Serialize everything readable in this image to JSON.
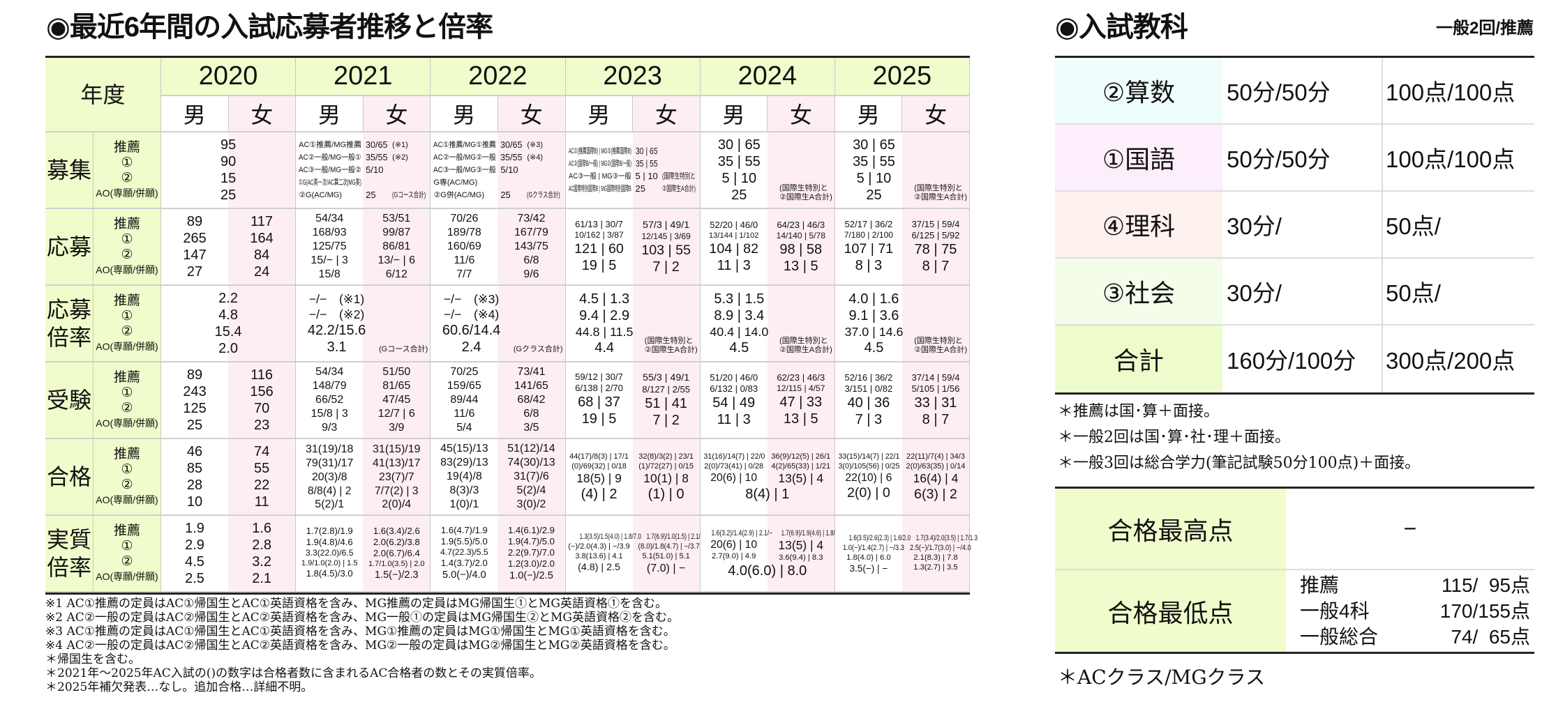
{
  "left_title": "◉最近6年間の入試応募者推移と倍率",
  "table": {
    "year_header": "年度",
    "years": [
      "2020",
      "2021",
      "2022",
      "2023",
      "2024",
      "2025"
    ],
    "gender": [
      "男",
      "女"
    ],
    "colors": {
      "label_bg": "#f0fccb",
      "female_bg": "#fdeef5"
    },
    "rows": [
      {
        "label": "募集",
        "sublabels": [
          "推薦",
          "①",
          "②",
          "AO(専願/併願)"
        ],
        "cells": [
          {
            "shared": [
              "95",
              "90",
              "15",
              "25"
            ]
          },
          {
            "table": [
              [
                "AC①推薦/MG推薦",
                "30/65",
                "(※1)"
              ],
              [
                "AC②一般/MG一般①",
                "35/55",
                "(※2)"
              ],
              [
                "AC③一般/MG一般②",
                "5/10",
                ""
              ],
              [
                "①G(AC英一次/AC算二次|MG英)",
                "",
                ""
              ],
              [
                "②G(AC/MG)",
                "25",
                "(Gコース合計)"
              ]
            ]
          },
          {
            "table": [
              [
                "AC①推薦/MG①推薦",
                "30/65",
                "(※3)"
              ],
              [
                "AC②一般/MG②一般",
                "35/55",
                "(※4)"
              ],
              [
                "AC③一般/MG③一般",
                "5/10",
                ""
              ],
              [
                "G専(AC/MG)",
                "",
                ""
              ],
              [
                "②G併(AC/MG)",
                "25",
                "(Gクラス合計)"
              ]
            ]
          },
          {
            "table": [
              [
                "AC①(推薦国際B) | MG①(推薦国際B)",
                "30 | 65",
                ""
              ],
              [
                "AC②(国際B/一般) | MG②(国際B/一般)",
                "35 | 55",
                ""
              ],
              [
                "AC③一般 | MG③一般",
                "5 | 10",
                "(国際生特別と"
              ],
              [
                "AC国際特別国際B | MG国際特別国際B",
                "25",
                "②国際生A合計)"
              ]
            ]
          },
          {
            "shared": [
              "30 | 65",
              "35 | 55",
              "5 | 10",
              "25"
            ],
            "note": "(国際生特別と\n②国際生A合計)"
          },
          {
            "shared": [
              "30 | 65",
              "35 | 55",
              "5 | 10",
              "25"
            ],
            "note": "(国際生特別と\n②国際生A合計)"
          }
        ]
      },
      {
        "label": "応募",
        "sublabels": [
          "推薦",
          "①",
          "②",
          "AO(専願/併願)"
        ],
        "cells": [
          {
            "m": [
              "89",
              "265",
              "147",
              "27"
            ],
            "f": [
              "117",
              "164",
              "84",
              "24"
            ]
          },
          {
            "m": [
              "54/34",
              "168/93",
              "125/75",
              "15/− | 3",
              "15/8"
            ],
            "f": [
              "53/51",
              "99/87",
              "86/81",
              "13/− | 6",
              "6/12"
            ]
          },
          {
            "m": [
              "70/26",
              "189/78",
              "160/69",
              "11/6",
              "7/7"
            ],
            "f": [
              "73/42",
              "167/79",
              "143/75",
              "6/8",
              "9/6"
            ]
          },
          {
            "m": [
              "61/13 | 30/7",
              "10/162 | 3/87",
              "121 | 60",
              "19 | 5"
            ],
            "f": [
              "57/3 | 49/1",
              "12/145 | 3/69",
              "103 | 55",
              "7 | 2"
            ]
          },
          {
            "m": [
              "52/20 | 46/0",
              "13/144 | 1/102",
              "104 | 82",
              "11 | 3"
            ],
            "f": [
              "64/23 | 46/3",
              "14/140 | 5/78",
              "98 | 58",
              "13 | 5"
            ]
          },
          {
            "m": [
              "52/17 | 36/2",
              "7/180 | 2/100",
              "107 | 71",
              "8 | 3"
            ],
            "f": [
              "37/15 | 59/4",
              "6/125 | 5/92",
              "78 | 75",
              "8 | 7"
            ]
          }
        ]
      },
      {
        "label": "応募倍率",
        "sublabels": [
          "推薦",
          "①",
          "②",
          "AO(専願/併願)"
        ],
        "cells": [
          {
            "shared": [
              "2.2",
              "4.8",
              "15.4",
              "2.0"
            ]
          },
          {
            "shared": [
              "−/−　(※1)",
              "−/−　(※2)",
              "42.2/15.6",
              "3.1"
            ],
            "note": "(Gコース合計)"
          },
          {
            "shared": [
              "−/−　(※3)",
              "−/−　(※4)",
              "60.6/14.4",
              "2.4"
            ],
            "note": "(Gクラス合計)"
          },
          {
            "shared": [
              "4.5 | 1.3",
              "9.4 | 2.9",
              "44.8 | 11.5",
              "4.4"
            ],
            "note": "(国際生特別と\n②国際生A合計)"
          },
          {
            "shared": [
              "5.3 | 1.5",
              "8.9 | 3.4",
              "40.4 | 14.0",
              "4.5"
            ],
            "note": "(国際生特別と\n②国際生A合計)"
          },
          {
            "shared": [
              "4.0 | 1.6",
              "9.1 | 3.6",
              "37.0 | 14.6",
              "4.5"
            ],
            "note": "(国際生特別と\n②国際生A合計)"
          }
        ]
      },
      {
        "label": "受験",
        "sublabels": [
          "推薦",
          "①",
          "②",
          "AO(専願/併願)"
        ],
        "cells": [
          {
            "m": [
              "89",
              "243",
              "125",
              "25"
            ],
            "f": [
              "116",
              "156",
              "70",
              "23"
            ]
          },
          {
            "m": [
              "54/34",
              "148/79",
              "66/52",
              "15/8 | 3",
              "9/3"
            ],
            "f": [
              "51/50",
              "81/65",
              "47/45",
              "12/7 | 6",
              "3/9"
            ]
          },
          {
            "m": [
              "70/25",
              "159/65",
              "89/44",
              "11/6",
              "5/4"
            ],
            "f": [
              "73/41",
              "141/65",
              "68/42",
              "6/8",
              "3/5"
            ]
          },
          {
            "m": [
              "59/12 | 30/7",
              "6/138 | 2/70",
              "68 | 37",
              "19 | 5"
            ],
            "f": [
              "55/3 | 49/1",
              "8/127 | 2/55",
              "51 | 41",
              "7 | 2"
            ]
          },
          {
            "m": [
              "51/20 | 46/0",
              "6/132 | 0/83",
              "54 | 49",
              "11 | 3"
            ],
            "f": [
              "62/23 | 46/3",
              "12/115 | 4/57",
              "47 | 33",
              "13 | 5"
            ]
          },
          {
            "m": [
              "52/16 | 36/2",
              "3/151 | 0/82",
              "40 | 36",
              "7 | 3"
            ],
            "f": [
              "37/14 | 59/4",
              "5/105 | 1/56",
              "33 | 31",
              "8 | 7"
            ]
          }
        ]
      },
      {
        "label": "合格",
        "sublabels": [
          "推薦",
          "①",
          "②",
          "AO(専願/併願)"
        ],
        "cells": [
          {
            "m": [
              "46",
              "85",
              "28",
              "10"
            ],
            "f": [
              "74",
              "55",
              "22",
              "11"
            ]
          },
          {
            "m": [
              "31(19)/18",
              "79(31)/17",
              "20(3)/8",
              "8/8(4) | 2",
              "5(2)/1"
            ],
            "f": [
              "31(15)/19",
              "41(13)/17",
              "23(7)/7",
              "7/7(2) | 3",
              "2(0)/4"
            ]
          },
          {
            "m": [
              "45(15)/13",
              "83(29)/13",
              "19(4)/8",
              "8(3)/3",
              "1(0)/1"
            ],
            "f": [
              "51(12)/14",
              "74(30)/13",
              "31(7)/6",
              "5(2)/4",
              "3(0)/2"
            ]
          },
          {
            "m": [
              "44(17)/8(3) | 17/1",
              "(0)/69(32) | 0/18",
              "18(5) | 9",
              "(4) | 2"
            ],
            "f": [
              "32(8)/3(2) | 23/1",
              "(1)/72(27) | 0/15",
              "10(1) | 8",
              "(1) | 0"
            ]
          },
          {
            "m": [
              "31(16)/14(7) | 22/0",
              "2(0)/73(41) | 0/28",
              "20(6) | 10"
            ],
            "f": [
              "36(9)/12(5) | 26/1",
              "4(2)/65(33) | 1/21",
              "13(5) | 4"
            ],
            "shared": [
              "8(4) | 1"
            ]
          },
          {
            "m": [
              "33(15)/14(7) | 22/1",
              "3(0)/105(56) | 0/25",
              "22(10) | 6",
              "2(0) | 0"
            ],
            "f": [
              "22(11)/7(4) | 34/3",
              "2(0)/63(35) | 0/14",
              "16(4) | 4",
              "6(3) | 2"
            ]
          }
        ]
      },
      {
        "label": "実質倍率",
        "sublabels": [
          "推薦",
          "①",
          "②",
          "AO(専願/併願)"
        ],
        "cells": [
          {
            "m": [
              "1.9",
              "2.9",
              "4.5",
              "2.5"
            ],
            "f": [
              "1.6",
              "2.8",
              "3.2",
              "2.1"
            ]
          },
          {
            "m": [
              "1.7(2.8)/1.9",
              "1.9(4.8)/4.6",
              "3.3(22.0)/6.5",
              "1.9/1.0(2.0) | 1.5",
              "1.8(4.5)/3.0"
            ],
            "f": [
              "1.6(3.4)/2.6",
              "2.0(6.2)/3.8",
              "2.0(6.7)/6.4",
              "1.7/1.0(3.5) | 2.0",
              "1.5(−)/2.3"
            ]
          },
          {
            "m": [
              "1.6(4.7)/1.9",
              "1.9(5.5)/5.0",
              "4.7(22.3)/5.5",
              "1.4(3.7)/2.0",
              "5.0(−)/4.0"
            ],
            "f": [
              "1.4(6.1)/2.9",
              "1.9(4.7)/5.0",
              "2.2(9.7)/7.0",
              "1.2(3.0)/2.0",
              "1.0(−)/2.5"
            ]
          },
          {
            "m": [
              "1.3(3.5)/1.5(4.0) | 1.8/7.0",
              "(−)/2.0(4.3) | −/3.9",
              "3.8(13.6) | 4.1",
              "(4.8) | 2.5"
            ],
            "f": [
              "1.7(6.9)/1.0(1.5) | 2.1/1.0",
              "(8.0)/1.8(4.7) | −/3.7",
              "5.1(51.0) | 5.1",
              "(7.0) | −"
            ]
          },
          {
            "m": [
              "1.6(3.2)/1.4(2.9) | 2.1/−",
              "20(6) | 10",
              "2.7(9.0) | 4.9"
            ],
            "f": [
              "1.7(6.9)/1.9(4.6) | 1.8/3.0",
              "13(5) | 4",
              "3.6(9.4) | 8.3"
            ],
            "shared": [
              "4.0(6.0) | 8.0"
            ]
          },
          {
            "m": [
              "1.6(3.5)/2.6(2.3) | 1.6/2.0",
              "1.0(−)/1.4(2.7) | −/3.3",
              "1.8(4.0) | 6.0",
              "3.5(−) | −"
            ],
            "f": [
              "1.7(3.4)/2.0(3.5) | 1.7/1.3",
              "2.5(−)/1.7(3.0) | −/4.0",
              "2.1(8.3) | 7.8",
              "1.3(2.7) | 3.5"
            ]
          }
        ]
      }
    ]
  },
  "left_notes": [
    "※1 AC①推薦の定員はAC①帰国生とAC①英語資格を含み、MG推薦の定員はMG帰国生①とMG英語資格①を含む。",
    "※2 AC②一般の定員はAC②帰国生とAC②英語資格を含み、MG一般①の定員はMG帰国生②とMG英語資格②を含む。",
    "※3 AC①推薦の定員はAC①帰国生とAC①英語資格を含み、MG①推薦の定員はMG①帰国生とMG①英語資格を含む。",
    "※4 AC②一般の定員はAC②帰国生とAC②英語資格を含み、MG②一般の定員はMG②帰国生とMG②英語資格を含む。",
    "＊帰国生を含む。",
    "＊2021年〜2025年AC入試の()の数字は合格者数に含まれるAC合格者の数とその実質倍率。",
    "＊2025年補欠発表…なし。追加合格…詳細不明。"
  ],
  "subjects": {
    "title": "◉入試教科",
    "subtitle": "一般2回/推薦",
    "rows": [
      {
        "name": "②算数",
        "time": "50分/50分",
        "score": "100点/100点",
        "color": "#effdfc"
      },
      {
        "name": "①国語",
        "time": "50分/50分",
        "score": "100点/100点",
        "color": "#fdeefb"
      },
      {
        "name": "④理科",
        "time": "30分/",
        "score": "50点/",
        "color": "#fdf1ee"
      },
      {
        "name": "③社会",
        "time": "30分/",
        "score": "50点/",
        "color": "#f3fdea"
      },
      {
        "name": "合計",
        "time": "160分/100分",
        "score": "300点/200点",
        "color": "#eefccb"
      }
    ],
    "notes": [
      "＊推薦は国･算＋面接。",
      "＊一般2回は国･算･社･理＋面接。",
      "＊一般3回は総合学力(筆記試験50分100点)＋面接。"
    ]
  },
  "scores": {
    "highest_label": "合格最高点",
    "highest_value": "−",
    "lowest_label": "合格最低点",
    "lowest": [
      {
        "type": "推薦",
        "value": "115/  95点"
      },
      {
        "type": "一般4科",
        "value": "170/155点"
      },
      {
        "type": "一般総合",
        "value": " 74/  65点"
      }
    ],
    "footnote": "＊ACクラス/MGクラス"
  }
}
